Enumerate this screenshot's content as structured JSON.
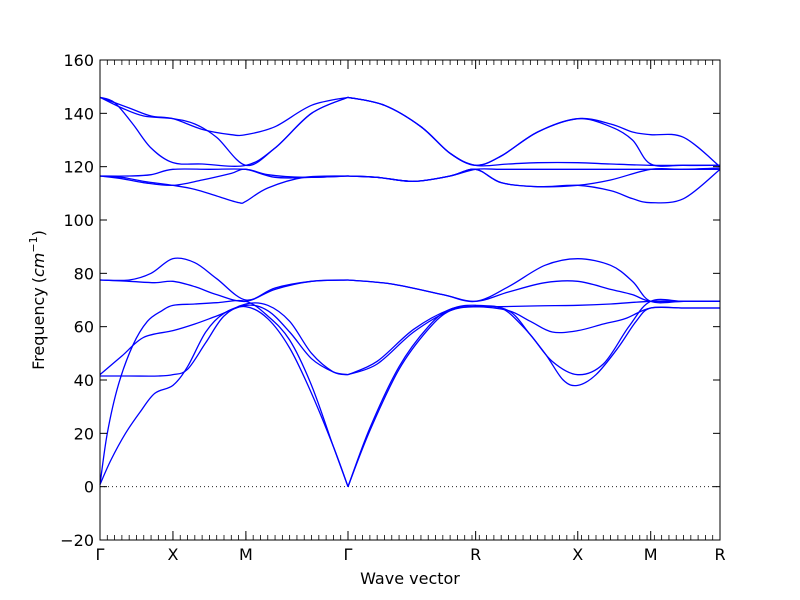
{
  "chart_data": {
    "type": "line",
    "xlabel": "Wave vector",
    "ylabel": "Frequency",
    "ylabel_unit": "cm",
    "ylabel_unit_exp": "−1",
    "ylim": [
      -20,
      160
    ],
    "yticks": [
      "160",
      "140",
      "120",
      "100",
      "80",
      "60",
      "40",
      "20",
      "0",
      "−20"
    ],
    "ytick_values": [
      160,
      140,
      120,
      100,
      80,
      60,
      40,
      20,
      0,
      -20
    ],
    "xlim": [
      0,
      8.5
    ],
    "xticks": [
      {
        "label": "Γ",
        "x": 0
      },
      {
        "label": "X",
        "x": 1
      },
      {
        "label": "M",
        "x": 2
      },
      {
        "label": "Γ",
        "x": 3.4
      },
      {
        "label": "R",
        "x": 5.15
      },
      {
        "label": "X",
        "x": 6.55
      },
      {
        "label": "M",
        "x": 7.55
      },
      {
        "label": "R",
        "x": 8.5
      }
    ],
    "zero_line": {
      "y": 0,
      "style": "dotted"
    },
    "line_color": "#0000ff",
    "series": [
      {
        "points": [
          [
            0,
            0.8
          ],
          [
            0.15,
            10
          ],
          [
            0.35,
            20
          ],
          [
            0.55,
            28
          ],
          [
            0.75,
            35
          ],
          [
            1,
            38
          ],
          [
            1.2,
            45
          ],
          [
            1.45,
            58
          ],
          [
            1.7,
            65
          ],
          [
            2,
            67.5
          ],
          [
            2.3,
            63
          ],
          [
            2.6,
            52
          ],
          [
            2.9,
            35
          ],
          [
            3.2,
            15
          ],
          [
            3.4,
            0
          ]
        ]
      },
      {
        "points": [
          [
            0,
            0.8
          ],
          [
            0.1,
            20
          ],
          [
            0.25,
            38
          ],
          [
            0.45,
            53
          ],
          [
            0.65,
            62
          ],
          [
            0.85,
            66
          ],
          [
            1,
            68
          ],
          [
            1.3,
            68.5
          ],
          [
            1.6,
            69
          ],
          [
            2,
            69.5
          ],
          [
            2.3,
            64
          ],
          [
            2.6,
            55
          ],
          [
            2.9,
            38
          ],
          [
            3.2,
            15
          ],
          [
            3.4,
            0
          ]
        ]
      },
      {
        "points": [
          [
            0,
            42
          ],
          [
            0.3,
            49
          ],
          [
            0.6,
            56
          ],
          [
            1,
            58.5
          ],
          [
            1.3,
            61
          ],
          [
            1.6,
            64
          ],
          [
            2,
            68
          ],
          [
            2.3,
            66
          ],
          [
            2.6,
            58
          ],
          [
            2.9,
            48
          ],
          [
            3.2,
            43
          ],
          [
            3.4,
            42
          ]
        ]
      },
      {
        "points": [
          [
            0,
            41.5
          ],
          [
            0.4,
            41.5
          ],
          [
            0.8,
            41.5
          ],
          [
            1,
            42
          ],
          [
            1.2,
            44
          ],
          [
            1.45,
            54
          ],
          [
            1.7,
            64
          ],
          [
            2,
            68.5
          ],
          [
            2.3,
            68
          ],
          [
            2.6,
            62
          ],
          [
            2.9,
            50
          ],
          [
            3.2,
            43
          ],
          [
            3.4,
            42
          ]
        ]
      },
      {
        "points": [
          [
            0,
            77.5
          ],
          [
            0.4,
            77
          ],
          [
            0.75,
            76.5
          ],
          [
            1,
            77
          ],
          [
            1.3,
            75
          ],
          [
            1.6,
            72
          ],
          [
            2,
            69.5
          ],
          [
            2.4,
            74
          ],
          [
            2.9,
            77
          ],
          [
            3.4,
            77.5
          ]
        ]
      },
      {
        "points": [
          [
            0,
            77.5
          ],
          [
            0.4,
            77.5
          ],
          [
            0.7,
            80
          ],
          [
            1,
            85.5
          ],
          [
            1.3,
            84
          ],
          [
            1.6,
            78
          ],
          [
            2,
            70
          ],
          [
            2.4,
            74.5
          ],
          [
            2.9,
            77
          ],
          [
            3.4,
            77.5
          ]
        ]
      },
      {
        "points": [
          [
            3.4,
            0
          ],
          [
            3.7,
            22
          ],
          [
            4.1,
            45
          ],
          [
            4.5,
            60
          ],
          [
            4.8,
            66.5
          ],
          [
            5.15,
            67.5
          ],
          [
            5.5,
            67
          ],
          [
            5.8,
            60
          ],
          [
            6.1,
            50
          ],
          [
            6.35,
            40
          ],
          [
            6.55,
            38
          ],
          [
            6.8,
            42
          ],
          [
            7.1,
            52
          ],
          [
            7.35,
            62
          ],
          [
            7.55,
            67
          ],
          [
            8,
            67
          ],
          [
            8.5,
            67
          ]
        ]
      },
      {
        "points": [
          [
            3.4,
            0
          ],
          [
            3.7,
            21
          ],
          [
            4.1,
            44
          ],
          [
            4.5,
            59
          ],
          [
            4.8,
            66
          ],
          [
            5.15,
            67.5
          ],
          [
            5.6,
            66
          ],
          [
            5.9,
            62
          ],
          [
            6.2,
            58
          ],
          [
            6.55,
            58.5
          ],
          [
            6.9,
            61
          ],
          [
            7.2,
            63
          ],
          [
            7.55,
            67
          ],
          [
            8,
            67
          ],
          [
            8.5,
            67
          ]
        ]
      },
      {
        "points": [
          [
            3.4,
            42
          ],
          [
            3.8,
            46
          ],
          [
            4.3,
            58
          ],
          [
            4.8,
            66
          ],
          [
            5.15,
            67.5
          ],
          [
            5.5,
            67.5
          ],
          [
            6,
            67.8
          ],
          [
            6.55,
            68
          ],
          [
            7,
            68.5
          ],
          [
            7.55,
            69.5
          ],
          [
            8,
            69.5
          ],
          [
            8.5,
            69.5
          ]
        ]
      },
      {
        "points": [
          [
            3.4,
            42
          ],
          [
            3.8,
            47
          ],
          [
            4.3,
            59
          ],
          [
            4.8,
            66.5
          ],
          [
            5.15,
            68
          ],
          [
            5.6,
            66
          ],
          [
            5.9,
            57
          ],
          [
            6.2,
            47
          ],
          [
            6.55,
            42
          ],
          [
            6.9,
            46
          ],
          [
            7.25,
            60
          ],
          [
            7.55,
            69.5
          ],
          [
            8,
            69.5
          ],
          [
            8.5,
            69.5
          ]
        ]
      },
      {
        "points": [
          [
            3.4,
            77.5
          ],
          [
            4,
            76
          ],
          [
            4.7,
            72
          ],
          [
            5.15,
            69.5
          ],
          [
            5.6,
            73
          ],
          [
            6.1,
            76.5
          ],
          [
            6.55,
            77
          ],
          [
            7,
            74
          ],
          [
            7.3,
            72
          ],
          [
            7.55,
            69.5
          ],
          [
            8,
            69.5
          ],
          [
            8.5,
            69.5
          ]
        ]
      },
      {
        "points": [
          [
            3.4,
            77.5
          ],
          [
            4,
            76
          ],
          [
            4.7,
            72
          ],
          [
            5.15,
            69.5
          ],
          [
            5.6,
            75
          ],
          [
            6.1,
            83
          ],
          [
            6.55,
            85.5
          ],
          [
            7,
            83
          ],
          [
            7.3,
            77
          ],
          [
            7.55,
            69.5
          ],
          [
            8,
            69.5
          ],
          [
            8.5,
            69.5
          ]
        ]
      },
      {
        "points": [
          [
            0,
            146
          ],
          [
            0.2,
            144
          ],
          [
            0.45,
            136
          ],
          [
            0.7,
            127
          ],
          [
            1,
            121.5
          ],
          [
            1.4,
            121
          ],
          [
            2,
            120.5
          ],
          [
            2.4,
            127
          ],
          [
            2.9,
            140
          ],
          [
            3.4,
            146
          ]
        ]
      },
      {
        "points": [
          [
            0,
            146
          ],
          [
            0.3,
            142
          ],
          [
            0.6,
            139
          ],
          [
            1,
            138
          ],
          [
            1.3,
            136
          ],
          [
            1.6,
            131
          ],
          [
            2,
            120.5
          ],
          [
            2.4,
            127
          ],
          [
            2.9,
            140
          ],
          [
            3.4,
            146
          ]
        ]
      },
      {
        "points": [
          [
            0,
            146
          ],
          [
            0.4,
            142
          ],
          [
            0.7,
            139
          ],
          [
            1,
            138
          ],
          [
            1.4,
            134
          ],
          [
            1.8,
            132
          ],
          [
            2,
            132
          ],
          [
            2.4,
            135
          ],
          [
            2.9,
            143
          ],
          [
            3.4,
            146
          ]
        ]
      },
      {
        "points": [
          [
            0,
            116.5
          ],
          [
            0.4,
            116.5
          ],
          [
            0.7,
            117
          ],
          [
            1,
            119
          ],
          [
            1.5,
            119
          ],
          [
            2,
            119
          ],
          [
            2.3,
            117
          ],
          [
            2.8,
            116
          ],
          [
            3.4,
            116.5
          ]
        ]
      },
      {
        "points": [
          [
            0,
            116.5
          ],
          [
            0.3,
            116
          ],
          [
            0.6,
            114.5
          ],
          [
            1,
            113
          ],
          [
            1.3,
            111.5
          ],
          [
            1.6,
            109
          ],
          [
            1.9,
            106.5
          ],
          [
            2,
            107
          ],
          [
            2.3,
            112
          ],
          [
            2.8,
            116
          ],
          [
            3.4,
            116.5
          ]
        ]
      },
      {
        "points": [
          [
            0,
            116.5
          ],
          [
            0.3,
            115.5
          ],
          [
            0.6,
            114
          ],
          [
            1,
            113
          ],
          [
            1.4,
            115
          ],
          [
            1.8,
            117.5
          ],
          [
            2,
            119
          ],
          [
            2.4,
            116
          ],
          [
            2.9,
            116
          ],
          [
            3.4,
            116.5
          ]
        ]
      },
      {
        "points": [
          [
            3.4,
            146
          ],
          [
            3.9,
            143
          ],
          [
            4.4,
            135
          ],
          [
            4.8,
            125
          ],
          [
            5.15,
            120.5
          ],
          [
            5.6,
            121
          ],
          [
            6,
            121.5
          ],
          [
            6.55,
            121.5
          ],
          [
            7,
            121
          ],
          [
            7.55,
            120.5
          ],
          [
            8,
            120.5
          ],
          [
            8.5,
            120.5
          ]
        ]
      },
      {
        "points": [
          [
            3.4,
            146
          ],
          [
            3.9,
            143
          ],
          [
            4.4,
            135
          ],
          [
            4.8,
            125
          ],
          [
            5.15,
            120.5
          ],
          [
            5.5,
            124
          ],
          [
            6,
            133
          ],
          [
            6.55,
            138
          ],
          [
            7,
            135
          ],
          [
            7.3,
            130
          ],
          [
            7.55,
            121
          ],
          [
            8,
            120.5
          ],
          [
            8.5,
            120.5
          ]
        ]
      },
      {
        "points": [
          [
            3.4,
            146
          ],
          [
            3.9,
            143
          ],
          [
            4.4,
            135
          ],
          [
            4.8,
            125
          ],
          [
            5.15,
            120.5
          ],
          [
            5.5,
            124
          ],
          [
            6,
            133
          ],
          [
            6.55,
            138
          ],
          [
            7,
            136
          ],
          [
            7.3,
            133
          ],
          [
            7.55,
            132
          ],
          [
            8,
            131
          ],
          [
            8.5,
            120
          ]
        ]
      },
      {
        "points": [
          [
            3.4,
            116.5
          ],
          [
            3.8,
            116
          ],
          [
            4.3,
            114.5
          ],
          [
            4.8,
            116.5
          ],
          [
            5.15,
            119
          ],
          [
            5.5,
            119
          ],
          [
            6,
            119
          ],
          [
            6.55,
            119
          ],
          [
            7,
            119
          ],
          [
            7.55,
            119
          ],
          [
            8,
            119
          ],
          [
            8.5,
            119
          ]
        ]
      },
      {
        "points": [
          [
            3.4,
            116.5
          ],
          [
            3.8,
            116
          ],
          [
            4.3,
            114.5
          ],
          [
            4.8,
            116.5
          ],
          [
            5.15,
            119
          ],
          [
            5.5,
            114
          ],
          [
            6,
            112.5
          ],
          [
            6.55,
            113
          ],
          [
            7,
            111
          ],
          [
            7.3,
            108
          ],
          [
            7.55,
            106.5
          ],
          [
            8,
            108
          ],
          [
            8.5,
            119
          ]
        ]
      },
      {
        "points": [
          [
            3.4,
            116.5
          ],
          [
            3.8,
            116
          ],
          [
            4.3,
            114.5
          ],
          [
            4.8,
            116.5
          ],
          [
            5.15,
            119
          ],
          [
            5.5,
            114
          ],
          [
            6,
            112.5
          ],
          [
            6.55,
            113
          ],
          [
            7,
            115
          ],
          [
            7.55,
            119
          ],
          [
            8,
            119
          ],
          [
            8.5,
            119.5
          ]
        ]
      }
    ]
  }
}
